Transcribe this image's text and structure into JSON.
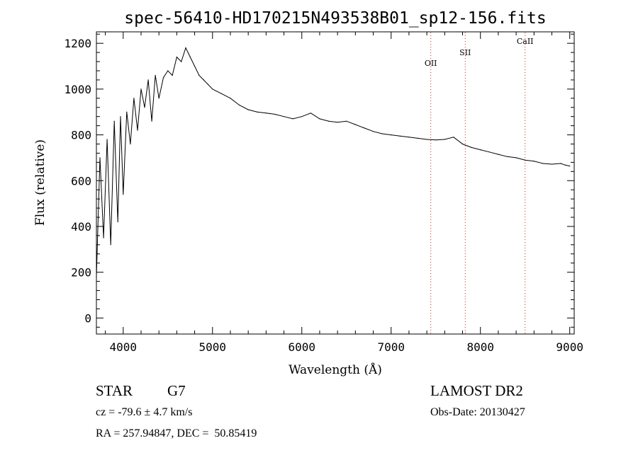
{
  "chart_data": {
    "type": "line",
    "title": "spec-56410-HD170215N493538B01_sp12-156.fits",
    "xlabel": "Wavelength (Å)",
    "ylabel": "Flux (relative)",
    "xlim": [
      3700,
      9050
    ],
    "ylim": [
      -70,
      1250
    ],
    "xticks": [
      4000,
      5000,
      6000,
      7000,
      8000,
      9000
    ],
    "yticks": [
      0,
      200,
      400,
      600,
      800,
      1000,
      1200
    ],
    "grid": false,
    "series": [
      {
        "x": [
          3700,
          3740,
          3780,
          3820,
          3860,
          3900,
          3940,
          3970,
          4000,
          4040,
          4080,
          4120,
          4160,
          4200,
          4240,
          4280,
          4320,
          4360,
          4400,
          4450,
          4500,
          4550,
          4600,
          4650,
          4700,
          4750,
          4800,
          4850,
          4900,
          4950,
          5000,
          5100,
          5200,
          5300,
          5400,
          5500,
          5600,
          5700,
          5800,
          5900,
          6000,
          6100,
          6200,
          6300,
          6400,
          6500,
          6600,
          6700,
          6800,
          6900,
          7000,
          7100,
          7200,
          7300,
          7400,
          7500,
          7600,
          7700,
          7800,
          7900,
          8000,
          8100,
          8200,
          8300,
          8400,
          8500,
          8600,
          8700,
          8800,
          8900,
          8950,
          9000
        ],
        "values": [
          180,
          700,
          350,
          780,
          320,
          860,
          420,
          880,
          540,
          900,
          760,
          960,
          820,
          1000,
          920,
          1040,
          860,
          1060,
          960,
          1050,
          1080,
          1060,
          1140,
          1120,
          1180,
          1140,
          1100,
          1060,
          1040,
          1020,
          1000,
          980,
          960,
          930,
          910,
          900,
          895,
          890,
          880,
          870,
          880,
          895,
          870,
          860,
          855,
          860,
          845,
          830,
          815,
          805,
          800,
          795,
          790,
          785,
          780,
          778,
          780,
          790,
          760,
          745,
          735,
          725,
          715,
          705,
          700,
          690,
          685,
          675,
          672,
          675,
          668,
          664
        ],
        "line_color": "#000000"
      }
    ],
    "annotations": [
      {
        "label": "OII",
        "x": 7444,
        "line_color": "#cc2222"
      },
      {
        "label": "SII",
        "x": 7830,
        "line_color": "#cc2222"
      },
      {
        "label": "CaII",
        "x": 8500,
        "line_color": "#cc2222"
      }
    ]
  },
  "info": {
    "class_label": "STAR",
    "subclass": "G7",
    "survey": "LAMOST DR2",
    "cz": "cz = -79.6 ± 4.7 km/s",
    "obs_date": "Obs-Date: 20130427",
    "coords": "RA = 257.94847, DEC =  50.85419"
  }
}
